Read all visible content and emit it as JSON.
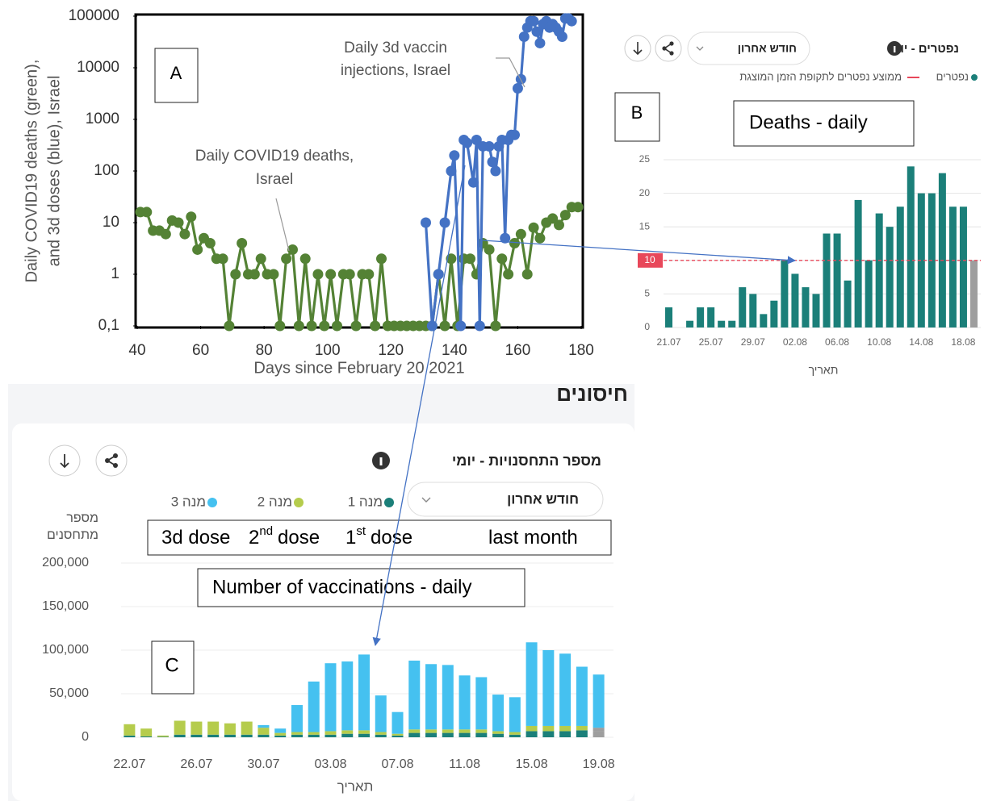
{
  "chart_data": [
    {
      "type": "line",
      "label": "A",
      "ylabel": [
        "Daily COVID19 deaths (green),",
        "and 3d doses (blue), Israel"
      ],
      "xlabel": "Days since February 20 2021",
      "xlim": [
        40,
        180
      ],
      "xticks": [
        40,
        60,
        80,
        100,
        120,
        140,
        160,
        180
      ],
      "ylim": [
        0.1,
        100000
      ],
      "ylog": true,
      "yticks": [
        {
          "value": 0.1,
          "label": "0,1"
        },
        1,
        10,
        100,
        1000,
        10000,
        100000
      ],
      "series": [
        {
          "color": "#548235",
          "x": [
            41,
            43,
            45,
            47,
            49,
            51,
            53,
            55,
            57,
            59,
            61,
            63,
            65,
            67,
            69,
            71,
            73,
            75,
            77,
            79,
            81,
            83,
            85,
            87,
            89,
            91,
            93,
            95,
            97,
            99,
            101,
            103,
            105,
            107,
            109,
            111,
            113,
            115,
            117,
            119,
            121,
            123,
            125,
            127,
            129,
            131,
            133,
            135,
            137,
            139,
            141,
            143,
            145,
            147,
            149,
            151,
            153,
            155,
            157,
            159,
            161,
            163,
            165,
            167,
            169,
            171,
            173,
            175,
            177,
            179
          ],
          "values": [
            16,
            16,
            7,
            7,
            6,
            11,
            10,
            6,
            13,
            3,
            5,
            4,
            2,
            2,
            0.1,
            1,
            4,
            1,
            1,
            2,
            1,
            1,
            0.1,
            2,
            3,
            0.1,
            2,
            0.1,
            1,
            0.1,
            1,
            0.1,
            1,
            1,
            0.1,
            1,
            1,
            0.1,
            2,
            0.1,
            0.1,
            0.1,
            0.1,
            0.1,
            0.1,
            0.1,
            0.1,
            1,
            0.1,
            2,
            0.1,
            2,
            2,
            1,
            4,
            3,
            0.1,
            2,
            1,
            4,
            6,
            1,
            8,
            5,
            10,
            12,
            9,
            14,
            20,
            20
          ]
        },
        {
          "color": "#4472c4",
          "x": [
            131,
            133,
            135,
            137,
            139,
            140,
            142,
            143,
            144,
            146,
            147,
            148,
            149,
            151,
            152,
            153,
            154,
            155,
            156,
            157,
            158,
            159,
            160,
            161,
            162,
            163,
            164,
            165,
            166,
            167,
            168,
            169,
            170,
            171,
            172,
            173,
            174,
            175,
            176,
            177
          ],
          "values": [
            10,
            0.1,
            1,
            10,
            100,
            200,
            0.1,
            400,
            350,
            60,
            400,
            0.1,
            300,
            300,
            150,
            100,
            300,
            400,
            5,
            400,
            500,
            500,
            4000,
            6000,
            40000,
            60000,
            80000,
            80000,
            50000,
            30000,
            70000,
            80000,
            60000,
            70000,
            60000,
            50000,
            40000,
            90000,
            90000,
            80000
          ]
        }
      ],
      "annotations": [
        {
          "lines": [
            "Daily 3d vaccin",
            "injections, Israel"
          ]
        },
        {
          "lines": [
            "Daily COVID19 deaths,",
            "Israel"
          ]
        }
      ]
    },
    {
      "type": "bar",
      "label": "B",
      "title": "נפטרים - יומי",
      "period": "חודש אחרון",
      "caption": "Deaths - daily",
      "xlabel": "תאריך",
      "categories": [
        "21.07",
        null,
        null,
        null,
        "25.07",
        null,
        null,
        null,
        "29.07",
        null,
        null,
        null,
        "02.08",
        null,
        null,
        null,
        "06.08",
        null,
        null,
        null,
        "10.08",
        null,
        null,
        null,
        "14.08",
        null,
        null,
        null,
        "18.08",
        null
      ],
      "series": [
        {
          "name": "נפטרים",
          "color": "#1b7f79",
          "values": [
            3,
            0,
            1,
            3,
            3,
            1,
            1,
            6,
            5,
            2,
            4,
            10,
            8,
            6,
            5,
            14,
            14,
            7,
            19,
            10,
            17,
            15,
            18,
            24,
            20,
            20,
            23,
            18,
            18,
            10
          ]
        }
      ],
      "last_bar_color": "#9e9e9e",
      "average": 10,
      "average_name": "ממוצע נפטרים לתקופת הזמן המוצגת",
      "average_color": "#e8475a",
      "ylim": [
        0,
        25
      ],
      "yticks": [
        0,
        5,
        10,
        15,
        20,
        25
      ],
      "grid": true
    },
    {
      "type": "stacked_bar",
      "label": "C",
      "heading": "חיסונים",
      "title": "מספר התחסנויות - יומי",
      "period": "חודש אחרון",
      "ylabel": [
        "מספר",
        "מתחסנים"
      ],
      "xlabel": "תאריך",
      "caption": "Number of vaccinations - daily",
      "translations": [
        {
          "text": "3d dose"
        },
        {
          "lead": "2",
          "sup": "nd",
          "text": "dose"
        },
        {
          "lead": "1",
          "sup": "st",
          "text": "dose"
        },
        {
          "text": "last month"
        }
      ],
      "categories": [
        "22.07",
        null,
        null,
        null,
        "26.07",
        null,
        null,
        null,
        "30.07",
        null,
        null,
        null,
        "03.08",
        null,
        null,
        null,
        "07.08",
        null,
        null,
        null,
        "11.08",
        null,
        null,
        null,
        "15.08",
        null,
        null,
        null,
        "19.08"
      ],
      "series": [
        {
          "name": "מנה 1",
          "color": "#1b7f79",
          "values": [
            2000,
            1000,
            500,
            3000,
            3000,
            3000,
            3000,
            3000,
            3000,
            2000,
            3000,
            3000,
            3000,
            4000,
            4000,
            3000,
            2000,
            5000,
            5000,
            5000,
            5000,
            5000,
            4000,
            3000,
            7000,
            7000,
            7000,
            8000,
            7000
          ]
        },
        {
          "name": "מנה 2",
          "color": "#b5cc4c",
          "values": [
            13000,
            9000,
            1500,
            16000,
            15000,
            15000,
            13000,
            15000,
            8000,
            3000,
            3000,
            3000,
            4000,
            4000,
            4000,
            3000,
            2000,
            4000,
            4000,
            4000,
            4000,
            4000,
            3000,
            3000,
            6000,
            6000,
            6000,
            5000,
            4000
          ]
        },
        {
          "name": "מנה 3",
          "color": "#45c1f0",
          "values": [
            0,
            0,
            0,
            0,
            0,
            0,
            0,
            0,
            3000,
            5000,
            31000,
            58000,
            78000,
            79000,
            87000,
            42000,
            25000,
            79000,
            75000,
            74000,
            62000,
            60000,
            42000,
            40000,
            96000,
            87000,
            83000,
            68000,
            61000
          ]
        }
      ],
      "last_bar_color": "#9e9e9e",
      "ylim": [
        0,
        200000
      ],
      "yticks": [
        0,
        {
          "value": 50000,
          "label": "50,000"
        },
        {
          "value": 100000,
          "label": "100,000"
        },
        {
          "value": 150000,
          "label": "150,000"
        },
        {
          "value": 200000,
          "label": "200,000"
        }
      ],
      "grid": true
    }
  ]
}
